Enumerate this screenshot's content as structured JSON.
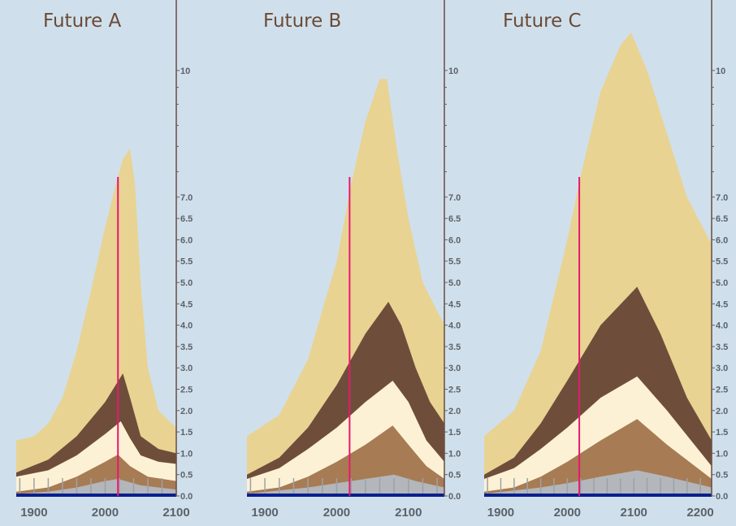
{
  "chart_data": [
    {
      "type": "area",
      "title": "Future A",
      "xlim": [
        1875,
        2100
      ],
      "x_ticks": [
        "1900",
        "2000",
        "2100"
      ],
      "x_tick_values": [
        1900,
        2000,
        2100
      ],
      "y_ticks": [
        "10",
        "7.0",
        "6.5",
        "6.0",
        "5.5",
        "5.0",
        "4.5",
        "4.0",
        "3.5",
        "3.0",
        "2.5",
        "2.0",
        "1.5",
        "1.0",
        "0.5",
        "0.0"
      ],
      "marker_year": 2018,
      "series_stacked_tops": [
        {
          "name": "tan",
          "color": "#e8d393",
          "points": [
            [
              1875,
              1.3
            ],
            [
              1900,
              1.4
            ],
            [
              1920,
              1.7
            ],
            [
              1940,
              2.3
            ],
            [
              1960,
              3.4
            ],
            [
              1980,
              4.8
            ],
            [
              2000,
              6.3
            ],
            [
              2015,
              7.3
            ],
            [
              2025,
              7.9
            ],
            [
              2035,
              8.15
            ],
            [
              2042,
              7.3
            ],
            [
              2050,
              5.0
            ],
            [
              2060,
              3.0
            ],
            [
              2075,
              2.0
            ],
            [
              2100,
              1.6
            ]
          ]
        },
        {
          "name": "dark-brown",
          "color": "#6e4e3a",
          "points": [
            [
              1875,
              0.55
            ],
            [
              1920,
              0.85
            ],
            [
              1960,
              1.4
            ],
            [
              2000,
              2.2
            ],
            [
              2025,
              2.87
            ],
            [
              2035,
              2.3
            ],
            [
              2050,
              1.4
            ],
            [
              2075,
              1.1
            ],
            [
              2100,
              1.0
            ]
          ]
        },
        {
          "name": "cream",
          "color": "#fcf1d4",
          "points": [
            [
              1875,
              0.45
            ],
            [
              1920,
              0.6
            ],
            [
              1960,
              0.95
            ],
            [
              2000,
              1.45
            ],
            [
              2022,
              1.75
            ],
            [
              2035,
              1.35
            ],
            [
              2050,
              0.95
            ],
            [
              2075,
              0.8
            ],
            [
              2100,
              0.75
            ]
          ]
        },
        {
          "name": "light-brown",
          "color": "#a77b53",
          "points": [
            [
              1875,
              0.1
            ],
            [
              1920,
              0.2
            ],
            [
              1960,
              0.45
            ],
            [
              2000,
              0.8
            ],
            [
              2018,
              0.97
            ],
            [
              2035,
              0.7
            ],
            [
              2060,
              0.45
            ],
            [
              2100,
              0.35
            ]
          ]
        },
        {
          "name": "gray",
          "color": "#b3b6ba",
          "points": [
            [
              1875,
              0.05
            ],
            [
              1920,
              0.1
            ],
            [
              1960,
              0.2
            ],
            [
              2000,
              0.35
            ],
            [
              2018,
              0.4
            ],
            [
              2050,
              0.25
            ],
            [
              2100,
              0.15
            ]
          ]
        }
      ]
    },
    {
      "type": "area",
      "title": "Future B",
      "xlim": [
        1875,
        2150
      ],
      "x_ticks": [
        "1900",
        "2000",
        "2100"
      ],
      "x_tick_values": [
        1900,
        2000,
        2100
      ],
      "y_ticks": [
        "10",
        "7.0",
        "6.5",
        "6.0",
        "5.5",
        "5.0",
        "4.5",
        "4.0",
        "3.5",
        "3.0",
        "2.5",
        "2.0",
        "1.5",
        "1.0",
        "0.5",
        "0.0"
      ],
      "marker_year": 2018,
      "series_stacked_tops": [
        {
          "name": "tan",
          "color": "#e8d393",
          "points": [
            [
              1875,
              1.4
            ],
            [
              1920,
              1.9
            ],
            [
              1960,
              3.2
            ],
            [
              2000,
              5.5
            ],
            [
              2020,
              7.3
            ],
            [
              2040,
              8.8
            ],
            [
              2060,
              9.8
            ],
            [
              2070,
              9.8
            ],
            [
              2085,
              8.0
            ],
            [
              2100,
              6.5
            ],
            [
              2120,
              5.0
            ],
            [
              2150,
              4.0
            ]
          ]
        },
        {
          "name": "dark-brown",
          "color": "#6e4e3a",
          "points": [
            [
              1875,
              0.5
            ],
            [
              1920,
              0.9
            ],
            [
              1960,
              1.6
            ],
            [
              2000,
              2.6
            ],
            [
              2040,
              3.8
            ],
            [
              2072,
              4.55
            ],
            [
              2090,
              4.0
            ],
            [
              2110,
              3.0
            ],
            [
              2130,
              2.2
            ],
            [
              2150,
              1.7
            ]
          ]
        },
        {
          "name": "cream",
          "color": "#fcf1d4",
          "points": [
            [
              1875,
              0.4
            ],
            [
              1920,
              0.65
            ],
            [
              1960,
              1.1
            ],
            [
              2000,
              1.6
            ],
            [
              2040,
              2.2
            ],
            [
              2078,
              2.7
            ],
            [
              2100,
              2.2
            ],
            [
              2125,
              1.3
            ],
            [
              2150,
              0.8
            ]
          ]
        },
        {
          "name": "light-brown",
          "color": "#a77b53",
          "points": [
            [
              1875,
              0.1
            ],
            [
              1920,
              0.2
            ],
            [
              1960,
              0.45
            ],
            [
              2000,
              0.8
            ],
            [
              2040,
              1.2
            ],
            [
              2078,
              1.65
            ],
            [
              2100,
              1.2
            ],
            [
              2125,
              0.7
            ],
            [
              2150,
              0.4
            ]
          ]
        },
        {
          "name": "gray",
          "color": "#b3b6ba",
          "points": [
            [
              1875,
              0.05
            ],
            [
              1960,
              0.2
            ],
            [
              2000,
              0.3
            ],
            [
              2040,
              0.4
            ],
            [
              2080,
              0.5
            ],
            [
              2110,
              0.35
            ],
            [
              2150,
              0.2
            ]
          ]
        }
      ]
    },
    {
      "type": "area",
      "title": "Future C",
      "xlim": [
        1875,
        2217
      ],
      "x_ticks": [
        "1900",
        "2000",
        "2100",
        "2200"
      ],
      "x_tick_values": [
        1900,
        2000,
        2100,
        2200
      ],
      "y_ticks": [
        "10",
        "7.0",
        "6.5",
        "6.0",
        "5.5",
        "5.0",
        "4.5",
        "4.0",
        "3.5",
        "3.0",
        "2.5",
        "2.0",
        "1.5",
        "1.0",
        "0.5",
        "0.0"
      ],
      "marker_year": 2018,
      "series_stacked_tops": [
        {
          "name": "tan",
          "color": "#e8d393",
          "points": [
            [
              1875,
              1.4
            ],
            [
              1920,
              2.0
            ],
            [
              1960,
              3.4
            ],
            [
              2000,
              6.0
            ],
            [
              2020,
              7.5
            ],
            [
              2050,
              9.5
            ],
            [
              2080,
              10.6
            ],
            [
              2096,
              10.9
            ],
            [
              2120,
              10.0
            ],
            [
              2150,
              8.5
            ],
            [
              2180,
              7.0
            ],
            [
              2217,
              5.9
            ]
          ]
        },
        {
          "name": "dark-brown",
          "color": "#6e4e3a",
          "points": [
            [
              1875,
              0.5
            ],
            [
              1920,
              0.9
            ],
            [
              1960,
              1.7
            ],
            [
              2000,
              2.7
            ],
            [
              2050,
              4.0
            ],
            [
              2105,
              4.9
            ],
            [
              2140,
              3.8
            ],
            [
              2180,
              2.3
            ],
            [
              2217,
              1.3
            ]
          ]
        },
        {
          "name": "cream",
          "color": "#fcf1d4",
          "points": [
            [
              1875,
              0.4
            ],
            [
              1920,
              0.65
            ],
            [
              1960,
              1.1
            ],
            [
              2000,
              1.6
            ],
            [
              2050,
              2.3
            ],
            [
              2105,
              2.8
            ],
            [
              2150,
              2.0
            ],
            [
              2217,
              0.7
            ]
          ]
        },
        {
          "name": "light-brown",
          "color": "#a77b53",
          "points": [
            [
              1875,
              0.1
            ],
            [
              1920,
              0.2
            ],
            [
              1960,
              0.45
            ],
            [
              2000,
              0.8
            ],
            [
              2050,
              1.3
            ],
            [
              2105,
              1.8
            ],
            [
              2150,
              1.2
            ],
            [
              2217,
              0.4
            ]
          ]
        },
        {
          "name": "gray",
          "color": "#b3b6ba",
          "points": [
            [
              1875,
              0.05
            ],
            [
              1960,
              0.2
            ],
            [
              2000,
              0.3
            ],
            [
              2050,
              0.45
            ],
            [
              2105,
              0.6
            ],
            [
              2150,
              0.45
            ],
            [
              2217,
              0.2
            ]
          ]
        }
      ]
    }
  ],
  "colors": {
    "background": "#cfe0ec",
    "axis": "#6b4a3e",
    "marker": "#e8186f",
    "baseline": "#0a1f8f",
    "title": "#6b4a36"
  }
}
